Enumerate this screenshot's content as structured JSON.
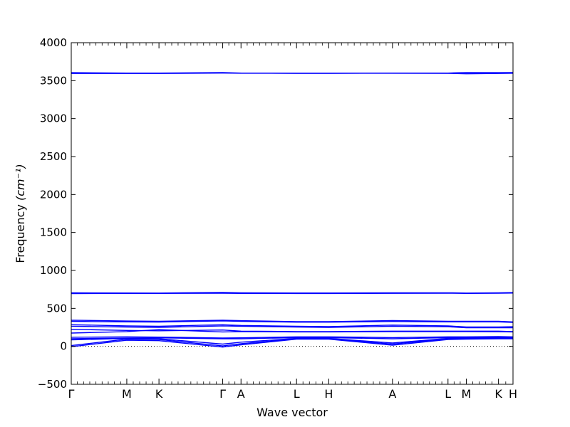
{
  "chart_data": {
    "type": "line",
    "title": "",
    "xlabel": "Wave vector",
    "ylabel": "Frequency",
    "ylabel_unit": "(cm⁻¹)",
    "ylim": [
      -500,
      4000
    ],
    "xlim": [
      0,
      14
    ],
    "grid": false,
    "line_color": "#0000ff",
    "y_ticks": [
      {
        "value": -500,
        "label": "−500"
      },
      {
        "value": 0,
        "label": "0"
      },
      {
        "value": 500,
        "label": "500"
      },
      {
        "value": 1000,
        "label": "1000"
      },
      {
        "value": 1500,
        "label": "1500"
      },
      {
        "value": 2000,
        "label": "2000"
      },
      {
        "value": 2500,
        "label": "2500"
      },
      {
        "value": 3000,
        "label": "3000"
      },
      {
        "value": 3500,
        "label": "3500"
      },
      {
        "value": 4000,
        "label": "4000"
      }
    ],
    "x_ticks": [
      {
        "value": 0,
        "label": "Γ"
      },
      {
        "value": 1.76,
        "label": "M"
      },
      {
        "value": 2.78,
        "label": "K"
      },
      {
        "value": 4.8,
        "label": "Γ"
      },
      {
        "value": 5.38,
        "label": "A"
      },
      {
        "value": 7.14,
        "label": "L"
      },
      {
        "value": 8.16,
        "label": "H"
      },
      {
        "value": 10.18,
        "label": "A"
      },
      {
        "value": 11.94,
        "label": "L"
      },
      {
        "value": 12.52,
        "label": "M"
      },
      {
        "value": 13.54,
        "label": "K"
      },
      {
        "value": 14,
        "label": "H"
      }
    ],
    "series": [
      {
        "x": [
          0,
          1.76,
          2.78,
          4.8,
          5.38,
          7.14,
          8.16,
          10.18,
          11.94,
          12.52,
          13.54,
          14
        ],
        "y": [
          3605,
          3600,
          3600,
          3607,
          3600,
          3598,
          3598,
          3600,
          3600,
          3608,
          3605,
          3607
        ]
      },
      {
        "x": [
          0,
          1.76,
          2.78,
          4.8,
          5.38,
          7.14,
          8.16,
          10.18,
          11.94,
          12.52,
          13.54,
          14
        ],
        "y": [
          3595,
          3595,
          3595,
          3600,
          3598,
          3597,
          3597,
          3598,
          3597,
          3590,
          3595,
          3598
        ]
      },
      {
        "x": [
          0,
          1.76,
          2.78,
          4.8,
          5.38,
          7.14,
          8.16,
          10.18,
          11.94,
          12.52,
          13.54,
          14
        ],
        "y": [
          705,
          703,
          702,
          710,
          705,
          703,
          703,
          705,
          706,
          702,
          705,
          708
        ]
      },
      {
        "x": [
          0,
          1.76,
          2.78,
          4.8,
          5.38,
          7.14,
          8.16,
          10.18,
          11.94,
          12.52,
          13.54,
          14
        ],
        "y": [
          695,
          697,
          697,
          700,
          697,
          696,
          696,
          698,
          700,
          697,
          700,
          702
        ]
      },
      {
        "x": [
          0,
          1.76,
          2.78,
          4.8,
          5.38,
          7.14,
          8.16,
          10.18,
          11.94,
          12.52,
          13.54,
          14
        ],
        "y": [
          345,
          333,
          330,
          345,
          338,
          325,
          325,
          340,
          330,
          330,
          330,
          322
        ]
      },
      {
        "x": [
          0,
          1.76,
          2.78,
          4.8,
          5.38,
          7.14,
          8.16,
          10.18,
          11.94,
          12.52,
          13.54,
          14
        ],
        "y": [
          330,
          322,
          320,
          335,
          330,
          318,
          318,
          328,
          322,
          322,
          322,
          315
        ]
      },
      {
        "x": [
          0,
          1.76,
          2.78,
          4.8,
          5.38,
          7.14,
          8.16,
          10.18,
          11.94,
          12.52,
          13.54,
          14
        ],
        "y": [
          285,
          270,
          265,
          285,
          275,
          265,
          260,
          280,
          270,
          255,
          255,
          258
        ]
      },
      {
        "x": [
          0,
          1.76,
          2.78,
          4.8,
          5.38,
          7.14,
          8.16,
          10.18,
          11.94,
          12.52,
          13.54,
          14
        ],
        "y": [
          265,
          255,
          250,
          270,
          265,
          255,
          250,
          265,
          258,
          245,
          245,
          245
        ]
      },
      {
        "x": [
          0,
          1.76,
          2.78,
          4.8,
          5.38,
          7.14,
          8.16,
          10.18,
          11.94,
          12.52,
          13.54,
          14
        ],
        "y": [
          225,
          210,
          205,
          215,
          200,
          195,
          195,
          200,
          200,
          200,
          200,
          195
        ]
      },
      {
        "x": [
          0,
          1.76,
          2.78,
          4.8,
          5.38,
          7.14,
          8.16,
          10.18,
          11.94,
          12.52,
          13.54,
          14
        ],
        "y": [
          175,
          195,
          220,
          190,
          195,
          190,
          190,
          195,
          195,
          195,
          192,
          190
        ]
      },
      {
        "x": [
          0,
          1.76,
          2.78,
          4.8,
          5.38,
          7.14,
          8.16,
          10.18,
          11.94,
          12.52,
          13.54,
          14
        ],
        "y": [
          120,
          125,
          122,
          110,
          112,
          125,
          125,
          115,
          125,
          125,
          128,
          125
        ]
      },
      {
        "x": [
          0,
          1.76,
          2.78,
          4.8,
          5.38,
          7.14,
          8.16,
          10.18,
          11.94,
          12.52,
          13.54,
          14
        ],
        "y": [
          100,
          110,
          112,
          100,
          100,
          115,
          115,
          100,
          115,
          115,
          118,
          115
        ]
      },
      {
        "x": [
          0,
          1.76,
          2.78,
          4.8,
          5.38,
          7.14,
          8.16,
          10.18,
          11.94,
          12.52,
          13.54,
          14
        ],
        "y": [
          85,
          105,
          100,
          30,
          55,
          105,
          105,
          45,
          105,
          108,
          110,
          108
        ]
      },
      {
        "x": [
          0,
          1.76,
          2.78,
          4.8,
          5.38,
          7.14,
          8.16,
          10.18,
          11.94,
          12.52,
          13.54,
          14
        ],
        "y": [
          10,
          95,
          90,
          5,
          35,
          100,
          100,
          30,
          100,
          100,
          105,
          105
        ]
      },
      {
        "x": [
          0,
          1.76,
          2.78,
          4.8,
          5.38,
          7.14,
          8.16,
          10.18,
          11.94,
          12.52,
          13.54,
          14
        ],
        "y": [
          -5,
          80,
          75,
          -10,
          20,
          95,
          95,
          15,
          90,
          95,
          100,
          100
        ]
      }
    ]
  }
}
